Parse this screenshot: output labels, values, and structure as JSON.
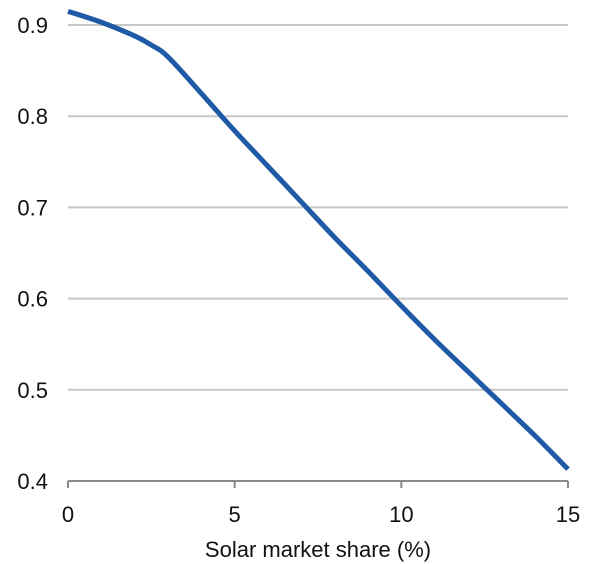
{
  "chart_data": {
    "type": "line",
    "title": "",
    "xlabel": "Solar market share (%)",
    "ylabel": "",
    "xlim": [
      0,
      15
    ],
    "ylim": [
      0.4,
      0.9
    ],
    "x_ticks": [
      0,
      5,
      10,
      15
    ],
    "y_ticks": [
      0.4,
      0.5,
      0.6,
      0.7,
      0.8,
      0.9
    ],
    "x_tick_labels": [
      "0",
      "5",
      "10",
      "15"
    ],
    "y_tick_labels": [
      "0.4",
      "0.5",
      "0.6",
      "0.7",
      "0.8",
      "0.9"
    ],
    "grid": "horizontal",
    "legend": "none",
    "series": [
      {
        "color": "#1f5aa6",
        "x": [
          0,
          1,
          2,
          2.5,
          3,
          4,
          5,
          6,
          7,
          8,
          9,
          10,
          11,
          12,
          13,
          14,
          15
        ],
        "y": [
          0.915,
          0.903,
          0.888,
          0.878,
          0.865,
          0.825,
          0.784,
          0.745,
          0.706,
          0.667,
          0.63,
          0.592,
          0.555,
          0.52,
          0.485,
          0.45,
          0.413
        ]
      }
    ]
  }
}
